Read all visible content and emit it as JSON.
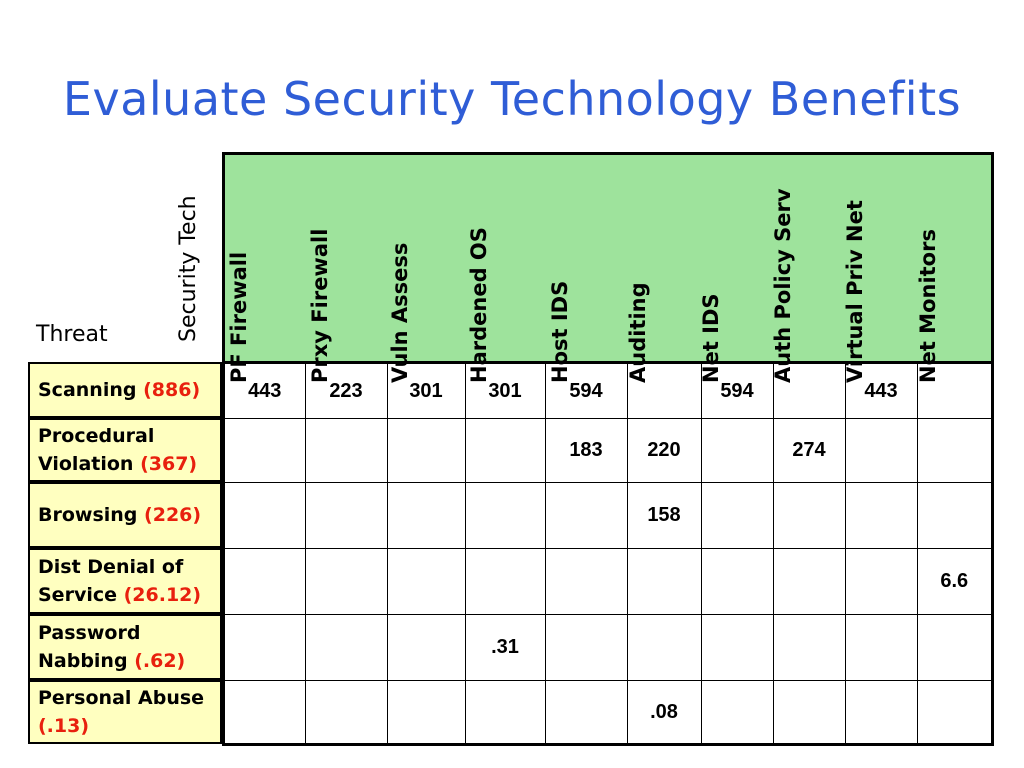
{
  "title": "Evaluate Security Technology Benefits",
  "corner": {
    "threat_label": "Threat",
    "tech_label": "Security Tech"
  },
  "columns": [
    "PF Firewall",
    "Prxy Firewall",
    "Vuln Assess",
    "Hardened OS",
    "Host IDS",
    "Auditing",
    "Net IDS",
    "Auth Policy Serv",
    "Virtual Priv Net",
    "Net Monitors"
  ],
  "rows": [
    {
      "name": "Scanning",
      "severity": "(886)",
      "values": [
        "443",
        "223",
        "301",
        "301",
        "594",
        "",
        "594",
        "",
        "443",
        ""
      ]
    },
    {
      "name": "Procedural Violation",
      "severity": "(367)",
      "values": [
        "",
        "",
        "",
        "",
        "183",
        "220",
        "",
        "274",
        "",
        ""
      ]
    },
    {
      "name": "Browsing",
      "severity": "(226)",
      "values": [
        "",
        "",
        "",
        "",
        "",
        "158",
        "",
        "",
        "",
        ""
      ]
    },
    {
      "name": "Dist Denial of Service",
      "severity": "(26.12)",
      "values": [
        "",
        "",
        "",
        "",
        "",
        "",
        "",
        "",
        "",
        "6.6"
      ]
    },
    {
      "name": "Password Nabbing",
      "severity": "(.62)",
      "values": [
        "",
        "",
        "",
        ".31",
        "",
        "",
        "",
        "",
        "",
        ""
      ]
    },
    {
      "name": "Personal Abuse",
      "severity": "(.13)",
      "values": [
        "",
        "",
        "",
        "",
        "",
        ".08",
        "",
        "",
        "",
        ""
      ]
    }
  ],
  "colors": {
    "title": "#2f5dd6",
    "header_bg": "#9ee39c",
    "threat_bg": "#ffffc0",
    "severity": "#e8200e"
  }
}
